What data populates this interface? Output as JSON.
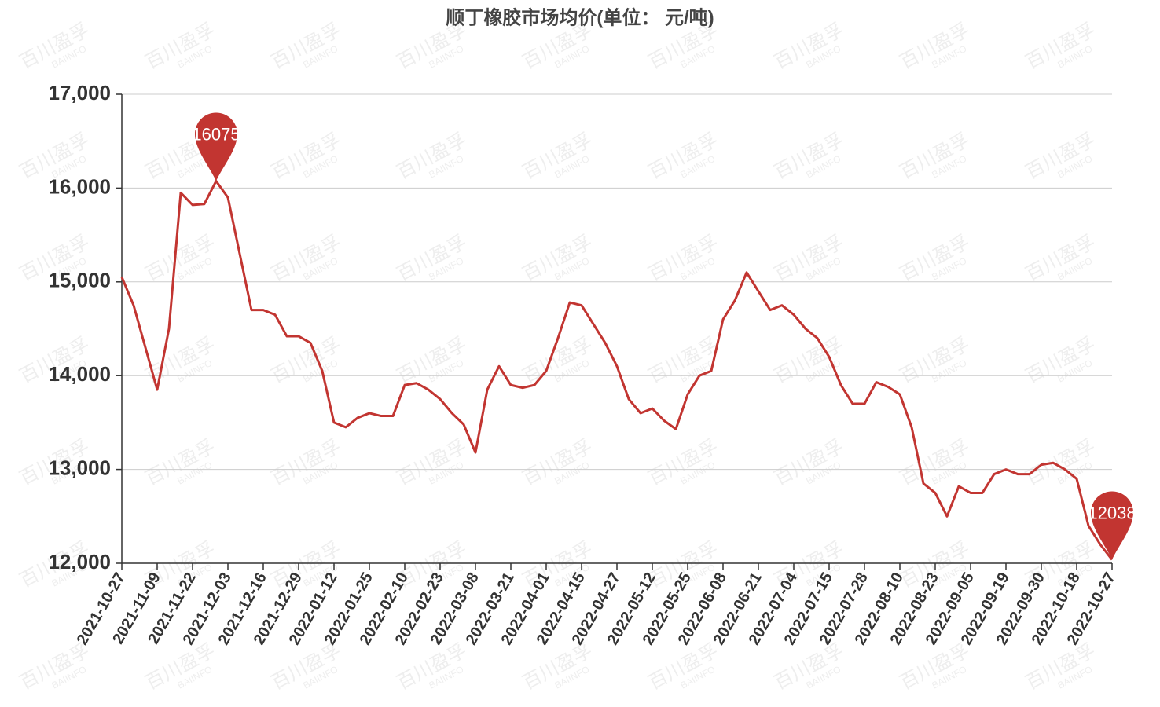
{
  "chart_data": {
    "type": "line",
    "title": "顺丁橡胶市场均价(单位： 元/吨)",
    "watermark": "百川盈孚",
    "watermark_sub": "BAIINFO",
    "categories": [
      "2021-10-27",
      null,
      null,
      "2021-11-09",
      null,
      null,
      "2021-11-22",
      null,
      null,
      "2021-12-03",
      null,
      null,
      "2021-12-16",
      null,
      null,
      "2021-12-29",
      null,
      null,
      "2022-01-12",
      null,
      null,
      "2022-01-25",
      null,
      null,
      "2022-02-10",
      null,
      null,
      "2022-02-23",
      null,
      null,
      "2022-03-08",
      null,
      null,
      "2022-03-21",
      null,
      null,
      "2022-04-01",
      null,
      null,
      "2022-04-15",
      null,
      null,
      "2022-04-27",
      null,
      null,
      "2022-05-12",
      null,
      null,
      "2022-05-25",
      null,
      null,
      "2022-06-08",
      null,
      null,
      "2022-06-21",
      null,
      null,
      "2022-07-04",
      null,
      null,
      "2022-07-15",
      null,
      null,
      "2022-07-28",
      null,
      null,
      "2022-08-10",
      null,
      null,
      "2022-08-23",
      null,
      null,
      "2022-09-05",
      null,
      null,
      "2022-09-19",
      null,
      null,
      "2022-09-30",
      null,
      null,
      "2022-10-18",
      null,
      null,
      "2022-10-27"
    ],
    "series": [
      {
        "name": "顺丁橡胶",
        "color": "#c23531",
        "values": [
          15050,
          14750,
          14300,
          13850,
          14500,
          15950,
          15820,
          15830,
          16075,
          15900,
          15300,
          14700,
          14700,
          14650,
          14420,
          14420,
          14350,
          14050,
          13500,
          13450,
          13550,
          13600,
          13570,
          13570,
          13900,
          13920,
          13850,
          13750,
          13600,
          13480,
          13180,
          13850,
          14100,
          13900,
          13870,
          13900,
          14050,
          14400,
          14780,
          14750,
          14550,
          14350,
          14100,
          13750,
          13600,
          13650,
          13520,
          13430,
          13800,
          14000,
          14050,
          14600,
          14800,
          15100,
          14900,
          14700,
          14750,
          14650,
          14500,
          14400,
          14200,
          13900,
          13700,
          13700,
          13930,
          13880,
          13800,
          13450,
          12850,
          12750,
          12500,
          12820,
          12750,
          12750,
          12950,
          13000,
          12950,
          12950,
          13050,
          13070,
          13000,
          12900,
          12400,
          12200,
          12038
        ]
      }
    ],
    "mark_points": [
      "max",
      "min"
    ],
    "ylim": [
      12000,
      17000
    ],
    "yticks": [
      {
        "value": 12000,
        "label": "12,000"
      },
      {
        "value": 13000,
        "label": "13,000"
      },
      {
        "value": 14000,
        "label": "14,000"
      },
      {
        "value": 15000,
        "label": "15,000"
      },
      {
        "value": 16000,
        "label": "16,000"
      },
      {
        "value": 17000,
        "label": "17,000"
      }
    ],
    "grid": true
  }
}
